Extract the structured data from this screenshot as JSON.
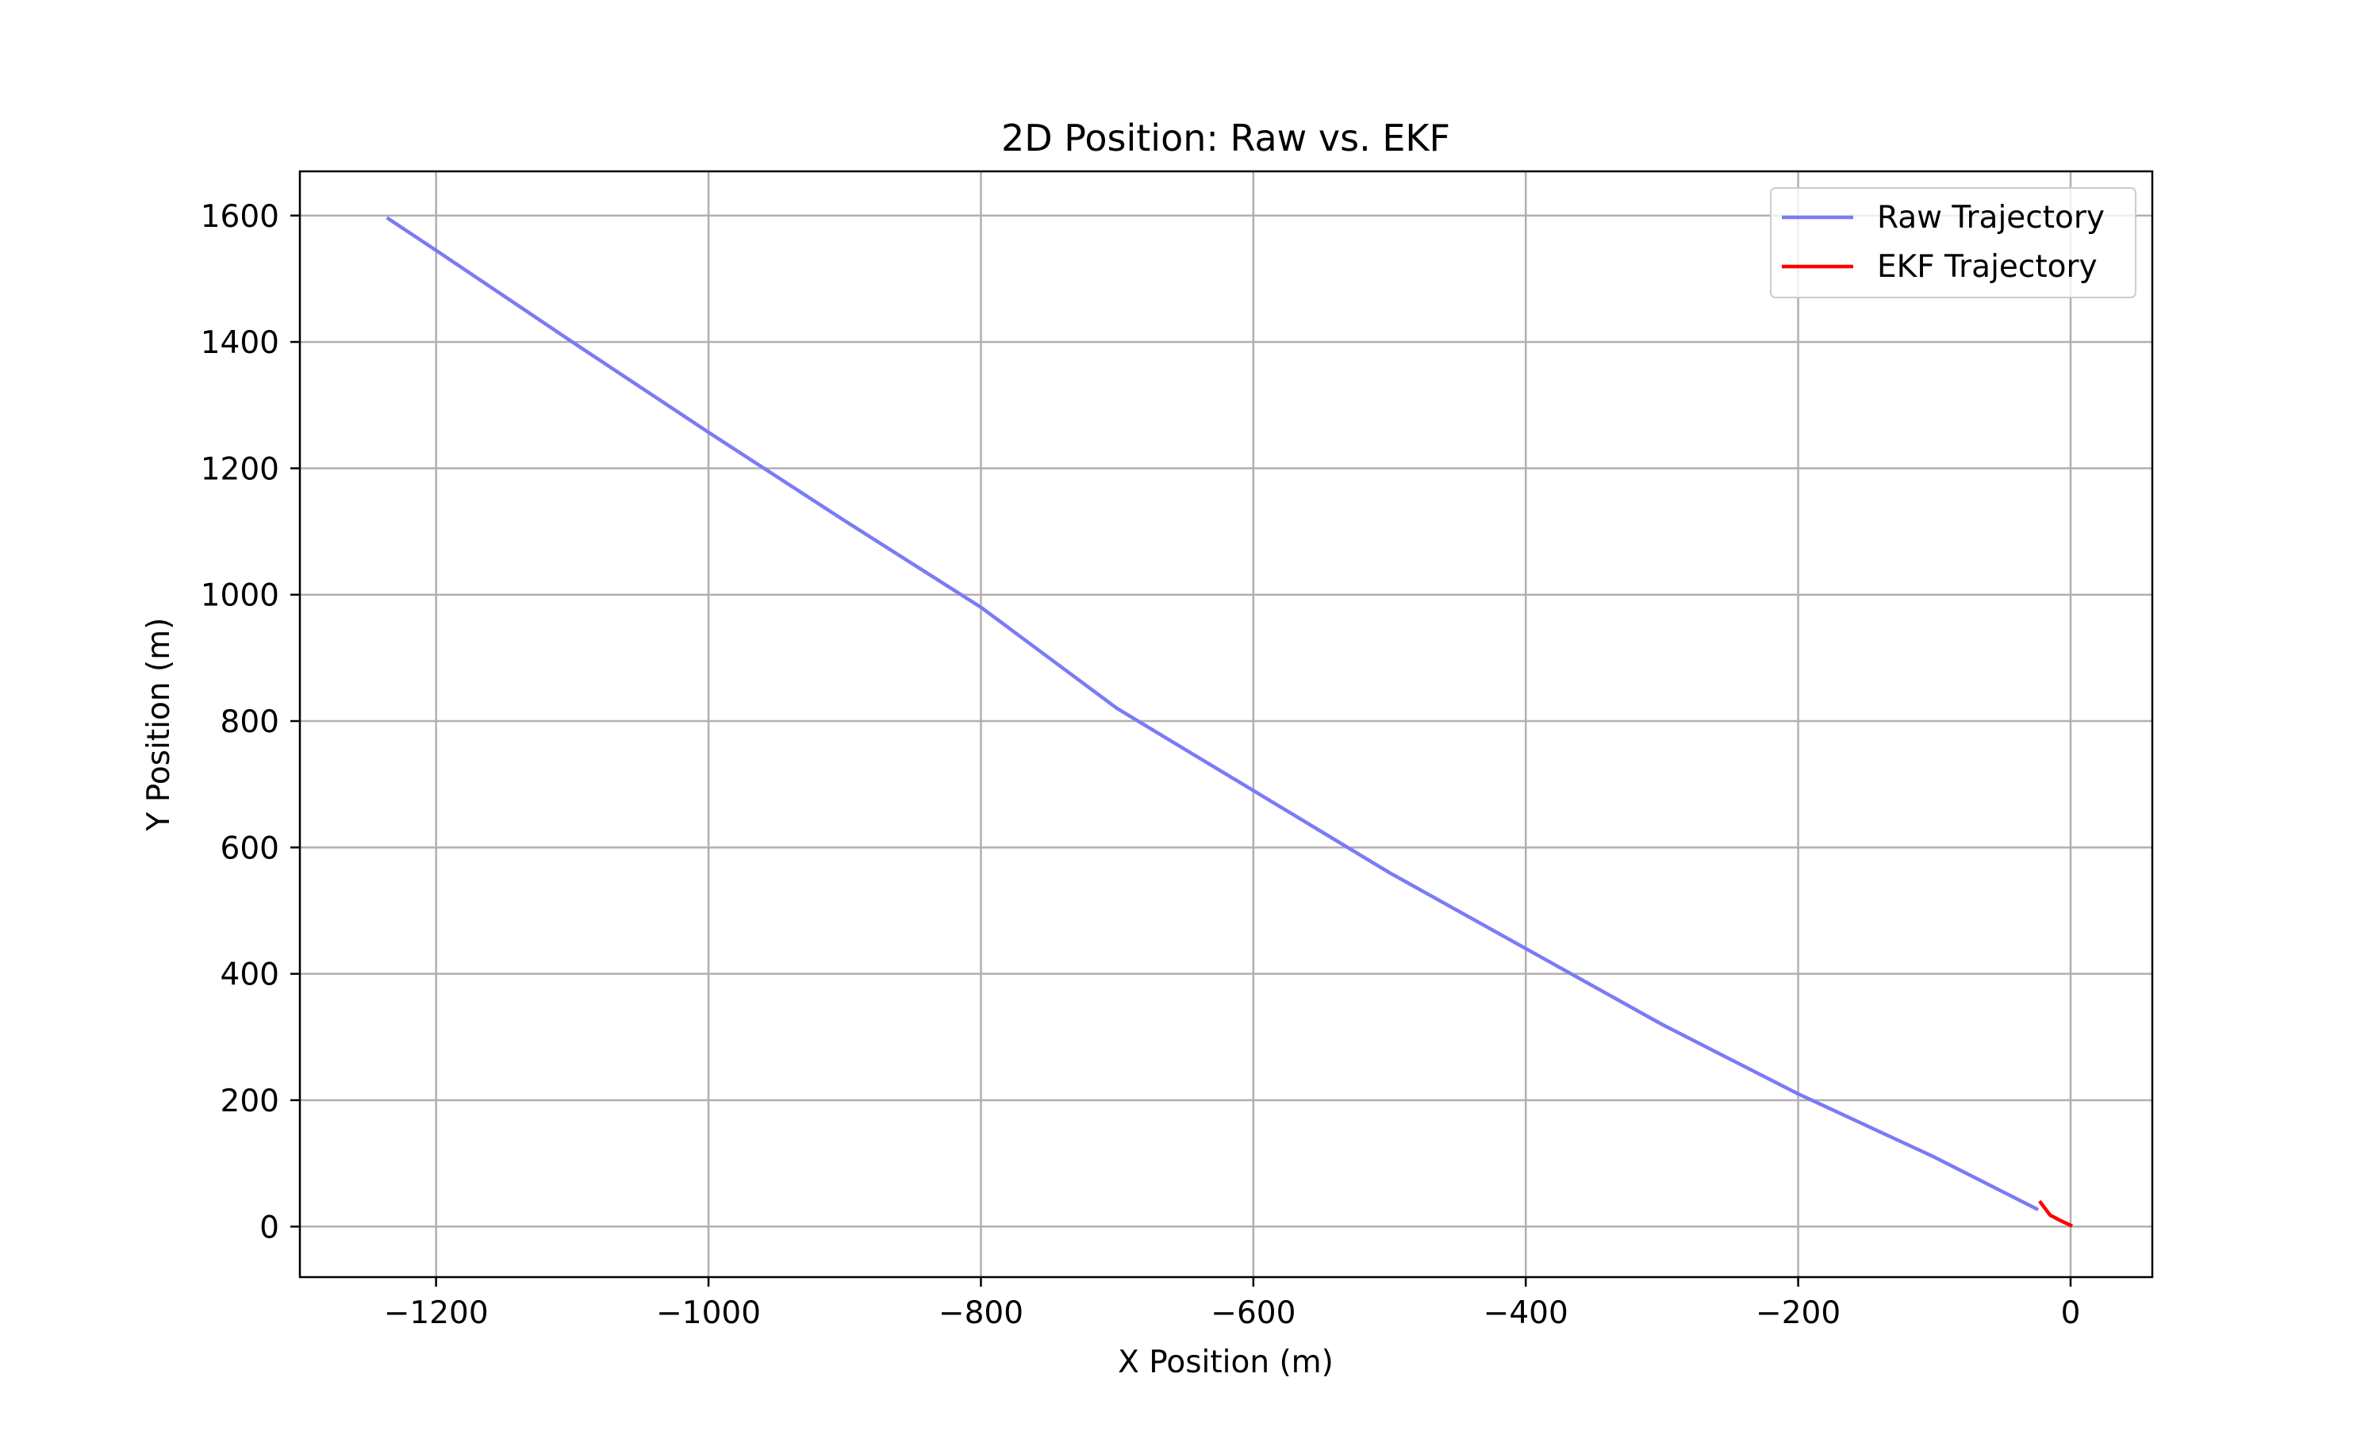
{
  "chart_data": {
    "type": "line",
    "title": "2D Position: Raw vs. EKF",
    "xlabel": "X Position (m)",
    "ylabel": "Y Position (m)",
    "xlim": [
      -1300,
      60
    ],
    "ylim": [
      -80,
      1670
    ],
    "xticks": [
      -1200,
      -1000,
      -800,
      -600,
      -400,
      -200,
      0
    ],
    "xtick_labels": [
      "−1200",
      "−1000",
      "−800",
      "−600",
      "−400",
      "−200",
      "0"
    ],
    "yticks": [
      0,
      200,
      400,
      600,
      800,
      1000,
      1200,
      1400,
      1600
    ],
    "ytick_labels": [
      "0",
      "200",
      "400",
      "600",
      "800",
      "1000",
      "1200",
      "1400",
      "1600"
    ],
    "grid": true,
    "legend_position": "top-right",
    "series": [
      {
        "name": "Raw Trajectory",
        "color": "#7b7bf6",
        "x": [
          -1235,
          -1200,
          -1100,
          -1000,
          -900,
          -800,
          -700,
          -600,
          -500,
          -400,
          -300,
          -200,
          -100,
          -25
        ],
        "y": [
          1595,
          1545,
          1400,
          1257,
          1117,
          980,
          820,
          690,
          560,
          440,
          320,
          210,
          110,
          28
        ]
      },
      {
        "name": "EKF Trajectory",
        "color": "#ff0000",
        "x": [
          -22,
          -15,
          -8,
          0
        ],
        "y": [
          38,
          18,
          10,
          2
        ]
      }
    ]
  }
}
